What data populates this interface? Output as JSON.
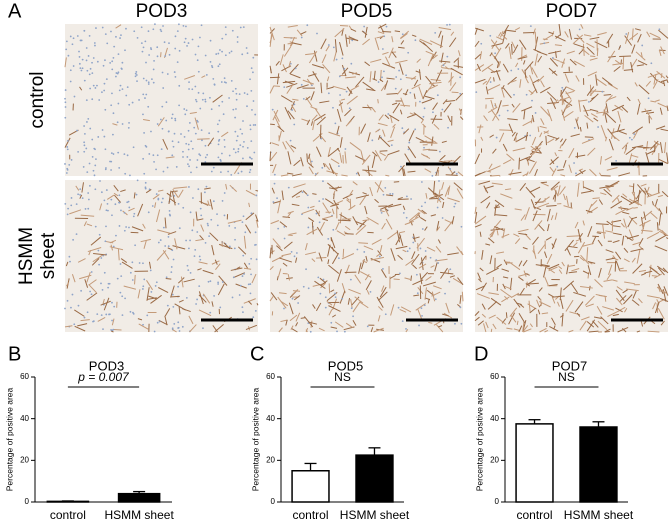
{
  "panel_a": {
    "letter": "A",
    "columns": [
      "POD3",
      "POD5",
      "POD7"
    ],
    "rows": [
      [
        "control"
      ],
      [
        "HSMM",
        "sheet"
      ]
    ]
  },
  "chart_data": [
    {
      "type": "bar",
      "letter": "B",
      "title": "POD3",
      "y_label": "Percentage of positive area",
      "categories": [
        "control",
        "HSMM sheet"
      ],
      "values": [
        0.3,
        4
      ],
      "errors": [
        0.2,
        1
      ],
      "colors": [
        "#ffffff",
        "#000000"
      ],
      "ylim": [
        0,
        60
      ],
      "yticks": [
        0,
        20,
        40,
        60
      ],
      "annotation": "p = 0.007"
    },
    {
      "type": "bar",
      "letter": "C",
      "title": "POD5",
      "y_label": "Percentage of positive area",
      "categories": [
        "control",
        "HSMM sheet"
      ],
      "values": [
        15,
        22.5
      ],
      "errors": [
        3.5,
        3.5
      ],
      "colors": [
        "#ffffff",
        "#000000"
      ],
      "ylim": [
        0,
        60
      ],
      "yticks": [
        0,
        20,
        40,
        60
      ],
      "annotation": "NS"
    },
    {
      "type": "bar",
      "letter": "D",
      "title": "POD7",
      "y_label": "Percentage of positive area",
      "categories": [
        "control",
        "HSMM sheet"
      ],
      "values": [
        37.5,
        36
      ],
      "errors": [
        2,
        2.5
      ],
      "colors": [
        "#ffffff",
        "#000000"
      ],
      "ylim": [
        0,
        60
      ],
      "yticks": [
        0,
        20,
        40,
        60
      ],
      "annotation": "NS"
    }
  ]
}
